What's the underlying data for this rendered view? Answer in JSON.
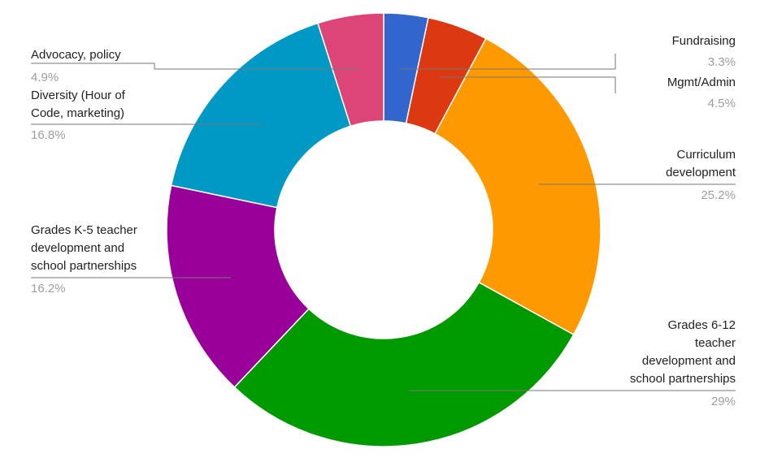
{
  "chart_data": {
    "type": "donut",
    "categories": [
      "Fundraising",
      "Mgmt/Admin",
      "Curriculum\ndevelopment",
      "Grades 6-12\nteacher\ndevelopment and\nschool partnerships",
      "Grades K-5 teacher\ndevelopment and\nschool partnerships",
      "Diversity (Hour of\nCode, marketing)",
      "Advocacy, policy"
    ],
    "values": [
      3.3,
      4.5,
      25.2,
      29,
      16.2,
      16.8,
      4.9
    ],
    "value_labels": [
      "3.3%",
      "4.5%",
      "25.2%",
      "29%",
      "16.2%",
      "16.8%",
      "4.9%"
    ],
    "colors": [
      "#3366cc",
      "#dc3912",
      "#ff9900",
      "#009900",
      "#990099",
      "#0099c6",
      "#dd4477"
    ]
  }
}
